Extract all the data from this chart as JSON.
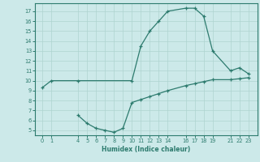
{
  "upper_x": [
    0,
    1,
    4,
    10,
    11,
    12,
    13,
    14,
    16,
    17,
    18,
    19,
    21,
    22,
    23
  ],
  "upper_y": [
    9.3,
    10.0,
    10.0,
    10.0,
    13.5,
    15.0,
    16.0,
    17.0,
    17.3,
    17.3,
    16.5,
    13.0,
    11.0,
    11.3,
    10.7
  ],
  "lower_x": [
    4,
    5,
    6,
    7,
    8,
    9,
    10,
    11,
    12,
    13,
    14,
    16,
    17,
    18,
    19,
    21,
    22,
    23
  ],
  "lower_y": [
    6.5,
    5.7,
    5.2,
    5.0,
    4.8,
    5.2,
    7.8,
    8.1,
    8.4,
    8.7,
    9.0,
    9.5,
    9.7,
    9.9,
    10.1,
    10.1,
    10.2,
    10.3
  ],
  "line_color": "#2d7b6e",
  "bg_color": "#cce9e9",
  "grid_color": "#aed4d0",
  "tick_color": "#2d7b6e",
  "xlabel": "Humidex (Indice chaleur)",
  "xticks": [
    0,
    1,
    4,
    5,
    6,
    7,
    8,
    9,
    10,
    11,
    12,
    13,
    14,
    16,
    17,
    18,
    19,
    21,
    22,
    23
  ],
  "yticks": [
    5,
    6,
    7,
    8,
    9,
    10,
    11,
    12,
    13,
    14,
    15,
    16,
    17
  ],
  "xlim": [
    -0.8,
    24.0
  ],
  "ylim": [
    4.5,
    17.8
  ]
}
